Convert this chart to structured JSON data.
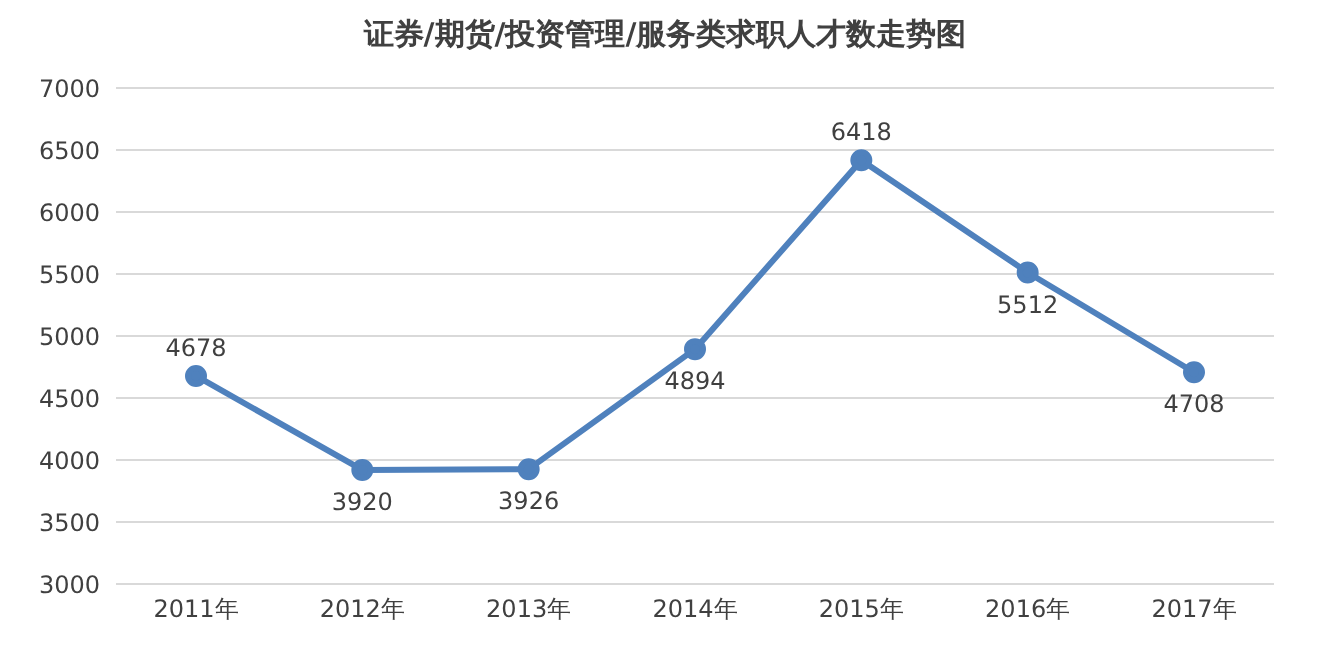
{
  "chart_data": {
    "type": "line",
    "title": "证券/期货/投资管理/服务类求职人才数走势图",
    "categories": [
      "2011年",
      "2012年",
      "2013年",
      "2014年",
      "2015年",
      "2016年",
      "2017年"
    ],
    "series": [
      {
        "color": "#4f81bd",
        "values": [
          4678,
          3920,
          3926,
          4894,
          6418,
          5512,
          4708
        ]
      }
    ],
    "ylim": [
      3000,
      7000
    ],
    "yticks": [
      3000,
      3500,
      4000,
      4500,
      5000,
      5500,
      6000,
      6500,
      7000
    ],
    "grid": "y",
    "marker": "circle",
    "line_style": "solid",
    "data_labels": true
  }
}
